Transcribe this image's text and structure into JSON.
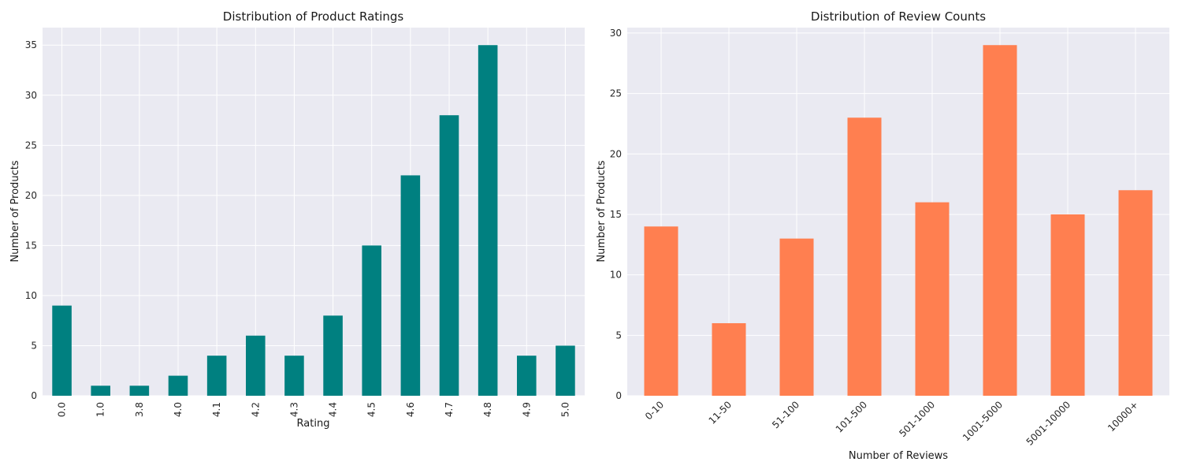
{
  "chart_data": [
    {
      "type": "bar",
      "title": "Distribution of Product Ratings",
      "xlabel": "Rating",
      "ylabel": "Number of Products",
      "categories": [
        "0.0",
        "1.0",
        "3.8",
        "4.0",
        "4.1",
        "4.2",
        "4.3",
        "4.4",
        "4.5",
        "4.6",
        "4.7",
        "4.8",
        "4.9",
        "5.0"
      ],
      "values": [
        9,
        1,
        1,
        2,
        4,
        6,
        4,
        8,
        15,
        22,
        28,
        35,
        4,
        5
      ],
      "ylim": [
        0,
        36.75
      ],
      "yticks": [
        0,
        5,
        10,
        15,
        20,
        25,
        30,
        35
      ],
      "xtick_rotation": 90,
      "color": "#008080",
      "grid": true
    },
    {
      "type": "bar",
      "title": "Distribution of Review Counts",
      "xlabel": "Number of Reviews",
      "ylabel": "Number of Products",
      "categories": [
        "0-10",
        "11-50",
        "51-100",
        "101-500",
        "501-1000",
        "1001-5000",
        "5001-10000",
        "10000+"
      ],
      "values": [
        14,
        6,
        13,
        23,
        16,
        29,
        15,
        17
      ],
      "ylim": [
        0,
        30.45
      ],
      "yticks": [
        0,
        5,
        10,
        15,
        20,
        25,
        30
      ],
      "xtick_rotation": 45,
      "color": "#ff7f50",
      "grid": true
    }
  ]
}
